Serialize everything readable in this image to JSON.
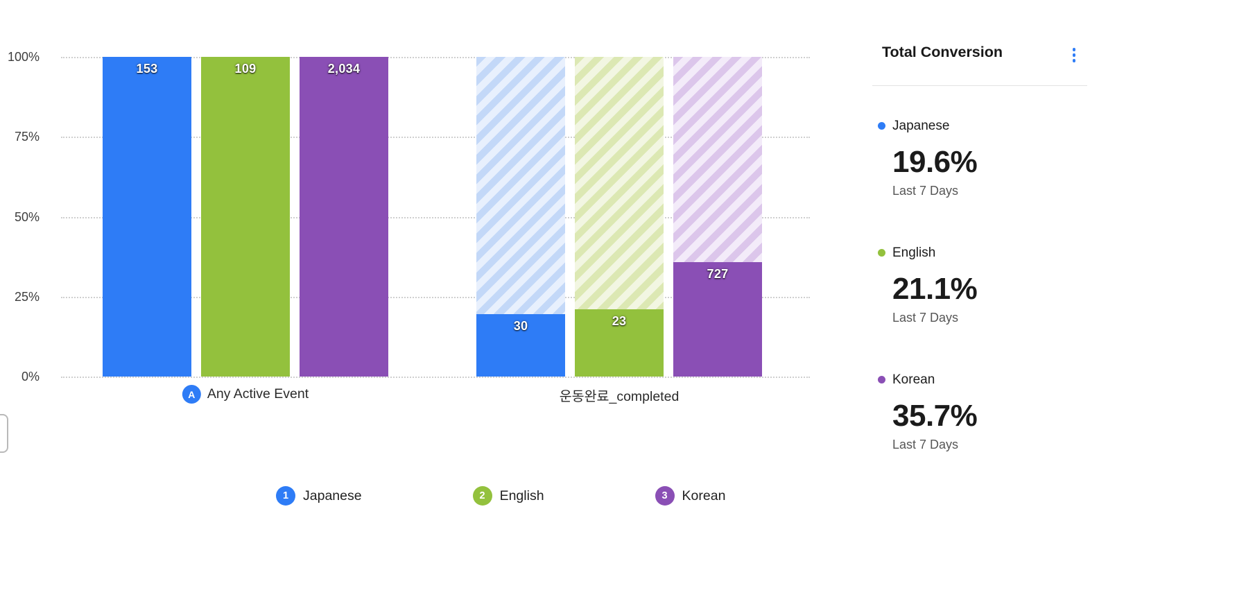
{
  "chart_data": {
    "type": "bar",
    "variant": "funnel-conversion-stacked",
    "title": "",
    "xlabel": "",
    "ylabel": "",
    "ylim": [
      0,
      100
    ],
    "grid": "horizontal-dotted",
    "legend_position": "bottom",
    "categories": [
      {
        "label": "Any Active Event",
        "icon": "any-active-event-icon"
      },
      {
        "label": "운동완료_completed",
        "icon": null
      }
    ],
    "yticks": [
      {
        "label": "100%",
        "pct": 100
      },
      {
        "label": "75%",
        "pct": 75
      },
      {
        "label": "50%",
        "pct": 50
      },
      {
        "label": "25%",
        "pct": 25
      },
      {
        "label": "0%",
        "pct": 0
      }
    ],
    "series": [
      {
        "name": "Japanese",
        "color": "#2e7cf6",
        "hatch": [
          "#c3d8f8",
          "#e8f0fd"
        ],
        "values_pct": [
          100,
          19.6
        ],
        "counts": [
          "153",
          "30"
        ]
      },
      {
        "name": "English",
        "color": "#93c13d",
        "hatch": [
          "#dce8b3",
          "#f2f6e2"
        ],
        "values_pct": [
          100,
          21.1
        ],
        "counts": [
          "109",
          "23"
        ]
      },
      {
        "name": "Korean",
        "color": "#8a4fb5",
        "hatch": [
          "#dcc6eb",
          "#f3ebf9"
        ],
        "values_pct": [
          100,
          35.7
        ],
        "counts": [
          "2,034",
          "727"
        ]
      }
    ]
  },
  "legend": [
    {
      "num": "1",
      "label": "Japanese",
      "color": "#2e7cf6"
    },
    {
      "num": "2",
      "label": "English",
      "color": "#93c13d"
    },
    {
      "num": "3",
      "label": "Korean",
      "color": "#8a4fb5"
    }
  ],
  "panel": {
    "title": "Total Conversion",
    "menu_icon": "kebab-menu-icon",
    "accent": "#2e7cf6",
    "items": [
      {
        "name": "Japanese",
        "color": "#2e7cf6",
        "value": "19.6%",
        "period": "Last 7 Days"
      },
      {
        "name": "English",
        "color": "#93c13d",
        "value": "21.1%",
        "period": "Last 7 Days"
      },
      {
        "name": "Korean",
        "color": "#8a4fb5",
        "value": "35.7%",
        "period": "Last 7 Days"
      }
    ]
  }
}
